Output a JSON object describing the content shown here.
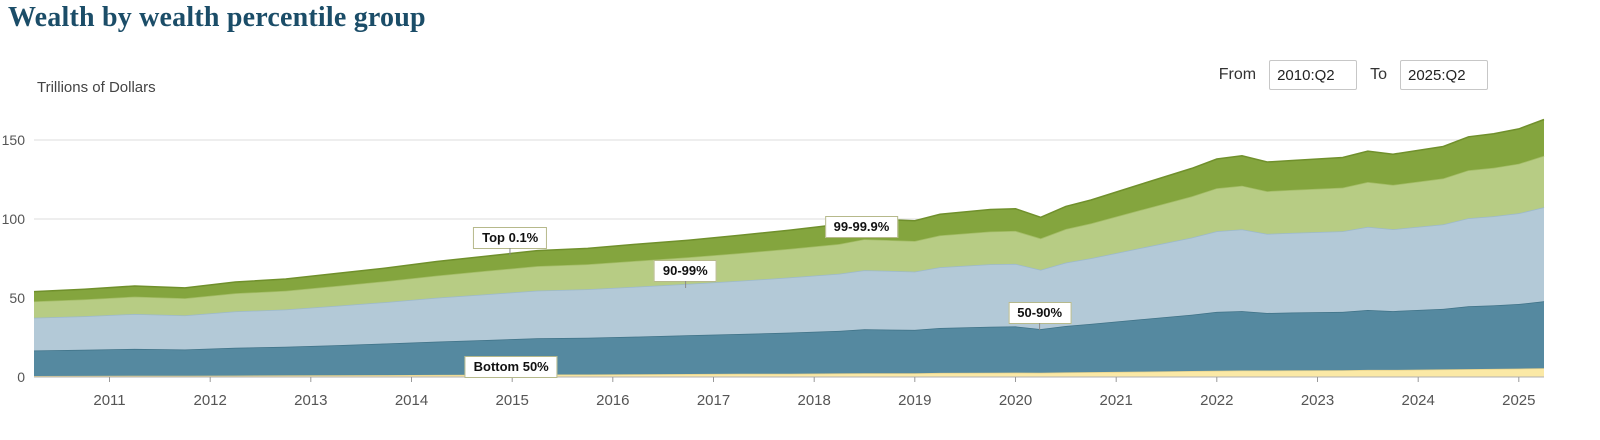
{
  "title": "Wealth by wealth percentile group",
  "y_axis_title": "Trillions of Dollars",
  "controls": {
    "from_label": "From",
    "from_value": "2010:Q2",
    "to_label": "To",
    "to_value": "2025:Q2"
  },
  "chart_data": {
    "type": "area",
    "stacked": true,
    "title": "Wealth by wealth percentile group",
    "ylabel": "Trillions of Dollars",
    "x_range": [
      2010.25,
      2025.25
    ],
    "y_range": [
      0,
      165
    ],
    "grid": "horizontal",
    "x_ticks": [
      2011,
      2012,
      2013,
      2014,
      2015,
      2016,
      2017,
      2018,
      2019,
      2020,
      2021,
      2022,
      2023,
      2024,
      2025
    ],
    "y_ticks": [
      0,
      50,
      100,
      150
    ],
    "x": [
      2010.25,
      2010.75,
      2011.25,
      2011.75,
      2012.25,
      2012.75,
      2013.25,
      2013.75,
      2014.25,
      2014.75,
      2015.25,
      2015.75,
      2016.25,
      2016.75,
      2017.25,
      2017.75,
      2018.25,
      2018.5,
      2019.0,
      2019.25,
      2019.75,
      2020.0,
      2020.25,
      2020.5,
      2020.75,
      2021.25,
      2021.75,
      2022.0,
      2022.25,
      2022.5,
      2022.75,
      2023.25,
      2023.5,
      2023.75,
      2024.25,
      2024.5,
      2024.75,
      2025.0,
      2025.25
    ],
    "series": [
      {
        "name": "Bottom 50%",
        "fill": "#fbe9a6",
        "stroke": "#e8d38c",
        "values": [
          0.65,
          0.7,
          0.8,
          0.8,
          0.9,
          1.0,
          1.1,
          1.2,
          1.3,
          1.4,
          1.6,
          1.6,
          1.7,
          1.9,
          2.0,
          2.1,
          2.3,
          2.4,
          2.4,
          2.6,
          2.7,
          2.8,
          2.7,
          2.9,
          3.1,
          3.4,
          3.8,
          4.0,
          4.1,
          4.1,
          4.2,
          4.3,
          4.5,
          4.5,
          4.8,
          5.0,
          5.1,
          5.3,
          5.5
        ]
      },
      {
        "name": "50-90%",
        "fill": "#5589a0",
        "stroke": "#3f7287",
        "values": [
          16.1,
          16.5,
          17.0,
          16.6,
          17.6,
          18.1,
          19.0,
          20.0,
          21.1,
          22.0,
          22.9,
          23.2,
          23.9,
          24.5,
          25.2,
          26.0,
          26.9,
          27.8,
          27.4,
          28.4,
          29.1,
          29.2,
          27.6,
          29.4,
          30.5,
          33.1,
          35.6,
          37.2,
          37.6,
          36.4,
          36.6,
          36.9,
          37.9,
          37.2,
          38.3,
          39.8,
          40.2,
          40.9,
          42.4
        ]
      },
      {
        "name": "90-99%",
        "fill": "#b3c9d7",
        "stroke": "#9cb9cb",
        "values": [
          20.8,
          21.3,
          22.1,
          21.6,
          23.0,
          23.6,
          24.9,
          26.2,
          27.7,
          29.0,
          30.2,
          30.8,
          31.6,
          32.5,
          33.6,
          34.9,
          36.1,
          37.4,
          36.9,
          38.4,
          39.5,
          39.6,
          37.5,
          40.1,
          41.5,
          45.2,
          48.8,
          51.0,
          51.7,
          50.1,
          50.4,
          51.1,
          52.6,
          51.8,
          53.5,
          55.7,
          56.4,
          57.4,
          59.5
        ]
      },
      {
        "name": "99-99.9%",
        "fill": "#b7cc84",
        "stroke": "#a3bc66",
        "values": [
          10.3,
          10.6,
          11.0,
          10.8,
          11.5,
          11.9,
          12.6,
          13.3,
          14.1,
          14.8,
          15.5,
          15.8,
          16.4,
          16.9,
          17.5,
          18.1,
          18.9,
          19.6,
          19.4,
          20.2,
          20.8,
          20.9,
          19.9,
          21.3,
          22.1,
          24.1,
          26.1,
          27.3,
          27.7,
          27.0,
          27.2,
          27.6,
          28.4,
          28.1,
          29.1,
          30.4,
          30.8,
          31.4,
          32.6
        ]
      },
      {
        "name": "Top 0.1%",
        "fill": "#84a53e",
        "stroke": "#70902c",
        "values": [
          6.2,
          6.4,
          6.7,
          6.6,
          7.1,
          7.4,
          7.9,
          8.3,
          8.9,
          9.3,
          9.8,
          10.0,
          10.5,
          10.8,
          11.3,
          11.8,
          12.4,
          12.9,
          12.8,
          13.4,
          13.9,
          14.0,
          13.4,
          14.3,
          14.8,
          16.3,
          17.7,
          18.5,
          18.9,
          18.5,
          18.6,
          19.0,
          19.6,
          19.4,
          20.2,
          21.1,
          21.5,
          22.0,
          23.0
        ]
      }
    ],
    "annotations": [
      {
        "label": "Top 0.1%",
        "x": 2014.98,
        "y": 88,
        "leader": true
      },
      {
        "label": "99-99.9%",
        "x": 2018.47,
        "y": 95,
        "leader": false
      },
      {
        "label": "90-99%",
        "x": 2016.72,
        "y": 67,
        "leader": true
      },
      {
        "label": "50-90%",
        "x": 2020.24,
        "y": 40.5,
        "leader": true
      },
      {
        "label": "Bottom 50%",
        "x": 2014.99,
        "y": 6.3,
        "leader": false
      }
    ]
  }
}
